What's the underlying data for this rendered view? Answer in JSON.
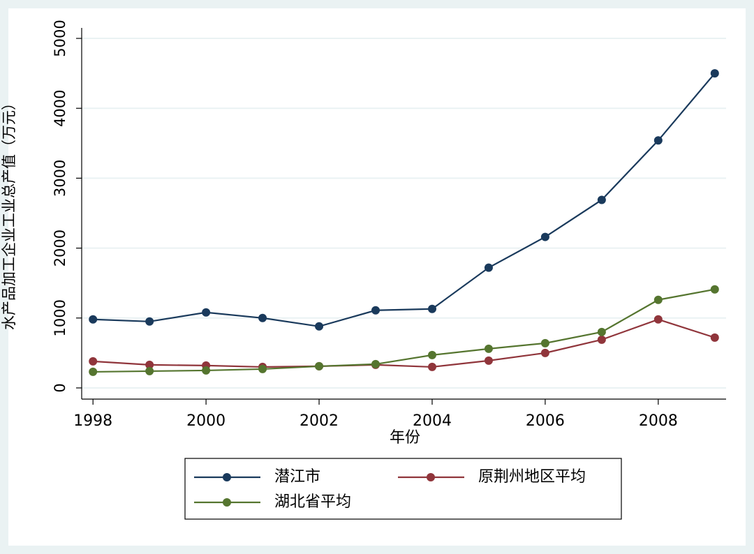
{
  "chart_data": {
    "type": "line",
    "x_label": "年份",
    "y_label": "水产品加工企业工业总产值（万元）",
    "x": [
      1998,
      1999,
      2000,
      2001,
      2002,
      2003,
      2004,
      2005,
      2006,
      2007,
      2008,
      2009
    ],
    "series": [
      {
        "name": "潜江市",
        "color": "#1a3a5c",
        "values": [
          980,
          950,
          1080,
          1000,
          880,
          1110,
          1130,
          1720,
          2160,
          2690,
          3540,
          4500
        ]
      },
      {
        "name": "原荆州地区平均",
        "color": "#90353b",
        "values": [
          380,
          330,
          320,
          300,
          310,
          330,
          300,
          390,
          500,
          690,
          980,
          720
        ]
      },
      {
        "name": "湖北省平均",
        "color": "#55752f",
        "values": [
          230,
          240,
          250,
          270,
          310,
          340,
          470,
          560,
          640,
          800,
          1260,
          1410
        ]
      }
    ],
    "xlim": [
      1997.8,
      2009.2
    ],
    "xticks": [
      1998,
      2000,
      2002,
      2004,
      2006,
      2008
    ],
    "ylim": [
      -160,
      5150
    ],
    "yticks": [
      0,
      1000,
      2000,
      3000,
      4000,
      5000
    ],
    "grid": true,
    "legend": "bottom"
  }
}
